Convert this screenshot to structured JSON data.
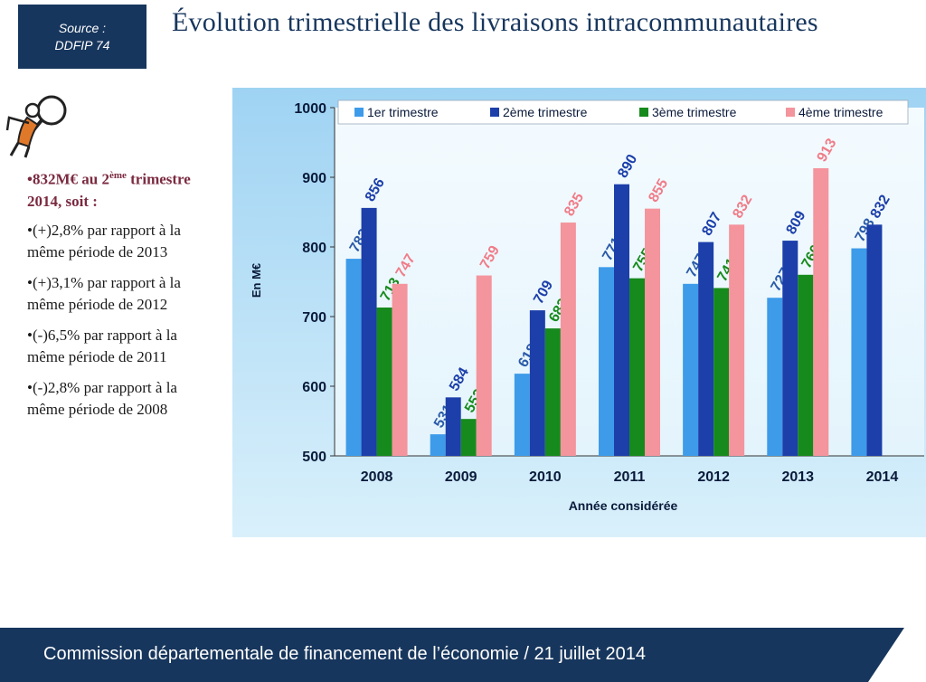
{
  "source": {
    "line1": "Source :",
    "line2": "DDFIP 74"
  },
  "title": "Évolution trimestrielle des livraisons intracommunautaires",
  "summary": {
    "head_main": "•832M€ au 2",
    "head_sup": "ème",
    "head_rest": "trimestre 2014, soit :",
    "bullets": [
      "•(+)2,8% par rapport à la même période de 2013",
      "•(+)3,1% par rapport à la même période de 2012",
      "•(-)6,5% par rapport à la même période de 2011",
      "•(-)2,8% par rapport à la même période de 2008"
    ]
  },
  "footer": "Commission départementale de financement de l’économie / 21 juillet 2014",
  "chart_data": {
    "type": "bar",
    "title": "",
    "xlabel": "Année considérée",
    "ylabel": "En M€",
    "ylim": [
      500,
      1000
    ],
    "yticks": [
      500,
      600,
      700,
      800,
      900,
      1000
    ],
    "grid": false,
    "legend_position": "top",
    "categories": [
      "2008",
      "2009",
      "2010",
      "2011",
      "2012",
      "2013",
      "2014"
    ],
    "series": [
      {
        "name": "1er trimestre",
        "color": "#3d9be9",
        "label_color": "#2a5aa8",
        "values": [
          783,
          531,
          618,
          771,
          747,
          727,
          798
        ]
      },
      {
        "name": "2ème trimestre",
        "color": "#1c3faa",
        "label_color": "#1c3faa",
        "values": [
          856,
          584,
          709,
          890,
          807,
          809,
          832
        ]
      },
      {
        "name": "3ème trimestre",
        "color": "#168a1c",
        "label_color": "#168a1c",
        "values": [
          713,
          553,
          683,
          755,
          741,
          760,
          null
        ]
      },
      {
        "name": "4ème trimestre",
        "color": "#f4949c",
        "label_color": "#f07c88",
        "values": [
          747,
          759,
          835,
          855,
          832,
          913,
          null
        ]
      }
    ]
  }
}
